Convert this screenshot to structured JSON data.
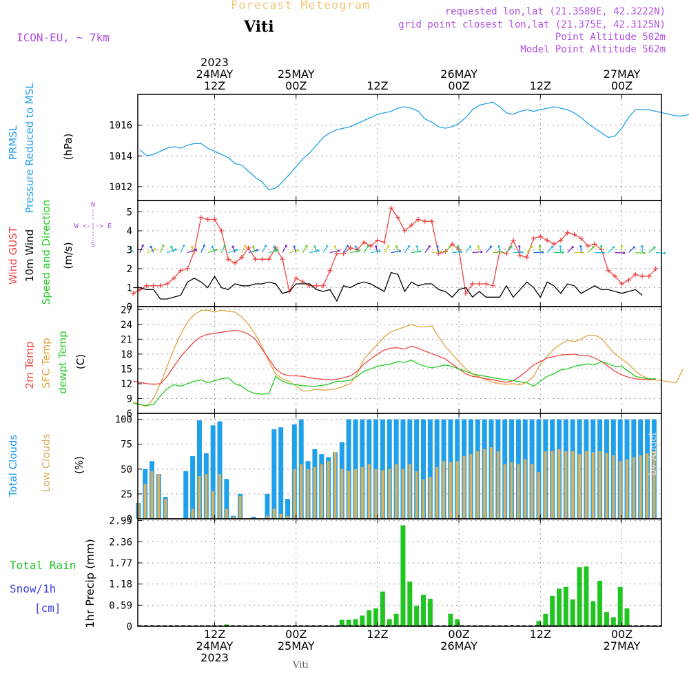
{
  "header": {
    "app_title": "Forecast Meteogram",
    "location": "Viti",
    "model": "ICON-EU, ~ 7km",
    "requested": "requested lon,lat (21.3589E, 42.3222N)",
    "grid_point": "grid point closest lon,lat (21.375E, 42.3125N)",
    "point_altitude": "Point Altitude 502m",
    "model_altitude": "Model Point Altitude 562m",
    "footer_location": "Viti",
    "watermark": "by Angel"
  },
  "time_axis": {
    "top_labels": [
      {
        "h": 12,
        "lines": [
          "2023",
          "24MAY",
          "12Z"
        ]
      },
      {
        "h": 24,
        "lines": [
          "25MAY",
          "00Z"
        ]
      },
      {
        "h": 36,
        "lines": [
          "12Z"
        ]
      },
      {
        "h": 48,
        "lines": [
          "26MAY",
          "00Z"
        ]
      },
      {
        "h": 60,
        "lines": [
          "12Z"
        ]
      },
      {
        "h": 72,
        "lines": [
          "27MAY",
          "00Z"
        ]
      }
    ],
    "bottom_labels": [
      {
        "h": 12,
        "lines": [
          "12Z",
          "24MAY",
          "2023"
        ]
      },
      {
        "h": 24,
        "lines": [
          "00Z",
          "25MAY"
        ]
      },
      {
        "h": 36,
        "lines": [
          "12Z"
        ]
      },
      {
        "h": 48,
        "lines": [
          "00Z",
          "26MAY"
        ]
      },
      {
        "h": 60,
        "lines": [
          "12Z"
        ]
      },
      {
        "h": 72,
        "lines": [
          "00Z",
          "27MAY"
        ]
      }
    ]
  },
  "colors": {
    "pressure": "#1fa0ea",
    "gust": "#ee4444",
    "wind": "#000000",
    "temp2m": "#ee4444",
    "sfc": "#e0a43c",
    "dewpt": "#22cc22",
    "total_cloud": "#1fa0ea",
    "low_cloud": "#d8b060",
    "precip": "#22c422",
    "title": "#f0c878",
    "meta": "#b050e0",
    "snow": "#4040e0"
  },
  "chart_data": [
    {
      "type": "line",
      "id": "pressure",
      "title_lines": [
        "PRMSL",
        "Pressure Reduced to MSL"
      ],
      "ylabel": "(hPa)",
      "ylim": [
        1011.1,
        1018.0
      ],
      "yticks": [
        1012,
        1014,
        1016
      ],
      "x_start_h": 1,
      "x_step_h": 1,
      "series": [
        {
          "name": "PRMSL",
          "values": [
            1014.4,
            1014.0,
            1014.1,
            1014.3,
            1014.5,
            1014.6,
            1014.5,
            1014.7,
            1014.8,
            1014.8,
            1014.5,
            1014.3,
            1014.1,
            1013.9,
            1013.5,
            1013.4,
            1013.0,
            1012.6,
            1012.3,
            1011.8,
            1011.9,
            1012.3,
            1012.8,
            1013.3,
            1013.8,
            1014.2,
            1014.7,
            1015.2,
            1015.5,
            1015.7,
            1015.8,
            1015.9,
            1016.1,
            1016.3,
            1016.5,
            1016.7,
            1016.8,
            1016.9,
            1017.1,
            1017.2,
            1017.1,
            1016.9,
            1016.4,
            1016.2,
            1015.9,
            1015.8,
            1015.9,
            1016.1,
            1016.5,
            1017.0,
            1017.3,
            1017.4,
            1017.5,
            1017.2,
            1016.8,
            1016.7,
            1016.9,
            1017.0,
            1016.9,
            1017.0,
            1017.1,
            1017.2,
            1017.1,
            1017.0,
            1016.8,
            1016.5,
            1016.1,
            1015.8,
            1015.5,
            1015.2,
            1015.3,
            1015.8,
            1016.5,
            1017.0,
            1017.0,
            1017.0,
            1016.9,
            1016.8,
            1016.7,
            1016.6,
            1016.6,
            1016.7,
            1016.9,
            1016.9
          ]
        }
      ]
    },
    {
      "type": "line",
      "id": "wind",
      "title_lines": [
        "Wind GUST",
        "10m Wind",
        "Speed and Direction"
      ],
      "ylabel": "(m/s)",
      "compass": [
        "N",
        "W <-|-> E",
        "S"
      ],
      "ylim": [
        0,
        5.6
      ],
      "yticks": [
        0,
        1,
        2,
        3,
        4,
        5
      ],
      "x_start_h": 0,
      "x_step_h": 1,
      "series": [
        {
          "name": "Wind GUST",
          "values": [
            0.7,
            0.9,
            1.1,
            1.1,
            1.1,
            1.2,
            1.5,
            1.9,
            2.0,
            2.9,
            4.7,
            4.6,
            4.6,
            4.0,
            2.5,
            2.3,
            2.6,
            3.1,
            2.5,
            2.5,
            2.5,
            3.1,
            2.5,
            0.8,
            1.5,
            1.3,
            1.1,
            1.1,
            1.1,
            1.9,
            2.8,
            2.8,
            3.1,
            3.0,
            3.4,
            3.2,
            3.5,
            3.4,
            5.2,
            4.7,
            4.0,
            4.3,
            4.6,
            4.5,
            4.5,
            2.8,
            2.9,
            3.3,
            3.0,
            0.7,
            1.2,
            1.2,
            1.2,
            1.1,
            2.9,
            2.8,
            3.5,
            2.7,
            2.6,
            3.6,
            3.7,
            3.5,
            3.3,
            3.5,
            3.9,
            3.8,
            3.6,
            3.2,
            3.3,
            3.0,
            1.9,
            1.6,
            1.2,
            1.4,
            1.7,
            1.6,
            1.6,
            2.0
          ]
        },
        {
          "name": "10m Wind",
          "values": [
            1.0,
            1.0,
            0.9,
            0.9,
            0.4,
            0.4,
            0.5,
            0.6,
            1.3,
            1.5,
            1.3,
            1.0,
            1.6,
            1.0,
            0.9,
            1.2,
            1.1,
            1.1,
            1.2,
            1.2,
            1.3,
            1.2,
            0.7,
            0.8,
            1.2,
            1.2,
            1.2,
            0.9,
            0.8,
            0.9,
            0.3,
            1.1,
            1.0,
            1.2,
            1.3,
            1.2,
            1.0,
            0.8,
            1.8,
            1.7,
            0.8,
            1.3,
            1.1,
            1.2,
            1.2,
            0.9,
            0.8,
            0.5,
            0.9,
            1.0,
            0.5,
            0.8,
            0.5,
            0.5,
            0.5,
            1.1,
            0.5,
            0.9,
            1.3,
            1.0,
            0.5,
            1.3,
            1.1,
            0.7,
            1.2,
            1.1,
            0.7,
            0.9,
            1.1,
            0.9,
            0.9,
            0.8,
            0.7,
            0.8,
            0.9,
            0.6
          ]
        }
      ]
    },
    {
      "type": "line",
      "id": "temperature",
      "title_lines": [
        "2m Temp",
        "SFC Temp",
        "dewpt Temp"
      ],
      "ylabel": "(C)",
      "ylim": [
        6,
        27.6
      ],
      "yticks": [
        6,
        9,
        12,
        15,
        18,
        21,
        24,
        27
      ],
      "x_start_h": 0,
      "x_step_h": 1,
      "series": [
        {
          "name": "2m Temp",
          "values": [
            12.5,
            12.3,
            12.0,
            11.9,
            12.0,
            13.5,
            15.5,
            17.5,
            19.0,
            20.5,
            21.5,
            22.0,
            22.2,
            22.4,
            22.6,
            22.8,
            22.6,
            22.0,
            21.0,
            19.0,
            17.0,
            15.0,
            14.0,
            13.6,
            13.6,
            13.5,
            13.2,
            13.0,
            12.9,
            12.8,
            12.9,
            13.2,
            13.6,
            14.5,
            16.0,
            17.0,
            18.0,
            18.8,
            19.2,
            19.3,
            19.0,
            19.6,
            19.2,
            18.6,
            18.1,
            17.6,
            17.0,
            16.0,
            15.0,
            14.0,
            13.5,
            13.3,
            13.0,
            12.8,
            12.5,
            12.3,
            12.6,
            13.5,
            14.6,
            15.8,
            16.5,
            17.2,
            17.5,
            17.8,
            17.9,
            18.0,
            17.7,
            17.7,
            17.2,
            16.5,
            15.5,
            14.5,
            13.8,
            13.3,
            13.0,
            12.9,
            12.8,
            12.9
          ]
        },
        {
          "name": "SFC Temp",
          "values": [
            8.3,
            7.8,
            7.4,
            9.0,
            12.0,
            15.5,
            19.0,
            22.0,
            24.5,
            26.0,
            26.8,
            26.9,
            26.5,
            26.9,
            26.6,
            26.5,
            25.5,
            24.0,
            22.0,
            19.5,
            16.5,
            14.0,
            13.0,
            12.5,
            11.5,
            10.5,
            10.6,
            10.9,
            10.7,
            10.8,
            11.0,
            11.5,
            12.0,
            14.0,
            17.0,
            18.5,
            20.0,
            21.5,
            22.5,
            23.0,
            23.5,
            24.0,
            23.5,
            23.5,
            23.7,
            21.5,
            19.5,
            18.0,
            16.5,
            15.0,
            14.0,
            13.4,
            12.8,
            12.3,
            12.0,
            11.9,
            12.0,
            11.8,
            12.3,
            13.5,
            16.0,
            17.5,
            19.0,
            20.0,
            20.8,
            20.5,
            21.0,
            21.8,
            21.8,
            21.2,
            19.5,
            18.0,
            17.0,
            16.0,
            14.5,
            13.6,
            13.0,
            12.8,
            12.6,
            12.4,
            12.2,
            15.0
          ]
        },
        {
          "name": "dewpt Temp",
          "values": [
            8.0,
            7.8,
            7.6,
            7.8,
            9.5,
            11.0,
            11.8,
            11.5,
            12.0,
            12.5,
            12.8,
            12.2,
            12.6,
            13.0,
            13.2,
            12.0,
            11.5,
            10.5,
            10.0,
            9.9,
            10.0,
            13.5,
            12.5,
            12.0,
            11.8,
            11.6,
            11.5,
            11.5,
            11.7,
            12.0,
            12.5,
            12.5,
            12.7,
            13.5,
            14.5,
            15.0,
            15.5,
            15.8,
            16.0,
            16.5,
            16.3,
            16.8,
            16.0,
            15.5,
            15.2,
            15.5,
            15.8,
            15.5,
            15.0,
            14.5,
            14.0,
            13.7,
            13.5,
            13.2,
            13.0,
            12.8,
            12.6,
            12.4,
            12.2,
            11.5,
            12.5,
            13.5,
            14.0,
            14.8,
            15.0,
            15.5,
            15.8,
            16.0,
            15.8,
            16.5,
            16.0,
            15.5,
            15.5,
            14.5,
            13.5,
            13.2,
            13.0,
            13.0
          ]
        }
      ]
    },
    {
      "type": "bar",
      "id": "clouds",
      "title_lines": [
        "Total Clouds",
        "Low Clouds"
      ],
      "ylabel": "(%)",
      "ylim": [
        0,
        106
      ],
      "yticks": [
        0,
        25,
        50,
        75,
        100
      ],
      "x_start_h": 0,
      "x_step_h": 1,
      "series": [
        {
          "name": "Total Clouds",
          "values": [
            16,
            50,
            58,
            45,
            22,
            0,
            0,
            48,
            63,
            99,
            66,
            94,
            98,
            40,
            3,
            25,
            0,
            2,
            0,
            25,
            90,
            92,
            20,
            95,
            100,
            58,
            70,
            65,
            62,
            67,
            77,
            100,
            100,
            100,
            100,
            100,
            100,
            100,
            100,
            100,
            100,
            100,
            100,
            100,
            100,
            100,
            100,
            100,
            100,
            100,
            100,
            100,
            100,
            100,
            100,
            100,
            100,
            100,
            100,
            100,
            100,
            100,
            100,
            100,
            100,
            100,
            100,
            100,
            100,
            100,
            100,
            100,
            100,
            100,
            100,
            100,
            100,
            100,
            85,
            97,
            85,
            90,
            100,
            63,
            68,
            91
          ]
        },
        {
          "name": "Low Clouds",
          "values": [
            16,
            35,
            48,
            45,
            20,
            0,
            0,
            0,
            10,
            43,
            45,
            28,
            45,
            10,
            2,
            23,
            0,
            0,
            0,
            3,
            10,
            5,
            3,
            50,
            55,
            50,
            52,
            55,
            58,
            67,
            50,
            48,
            50,
            52,
            55,
            50,
            49,
            50,
            55,
            50,
            55,
            48,
            40,
            42,
            52,
            58,
            57,
            58,
            63,
            65,
            68,
            70,
            72,
            68,
            55,
            57,
            55,
            60,
            55,
            47,
            68,
            68,
            70,
            68,
            68,
            65,
            68,
            67,
            68,
            66,
            64,
            58,
            60,
            62,
            64,
            66,
            68,
            70,
            75,
            78,
            77,
            62,
            68,
            80,
            82,
            92
          ]
        }
      ]
    },
    {
      "type": "bar",
      "id": "precip",
      "title_lines": [
        "Total Rain",
        "Snow/1h",
        "[cm]"
      ],
      "ylabel": "1hr Precip (mm)",
      "ylim": [
        0,
        3.0
      ],
      "yticks": [
        0,
        0.59,
        1.18,
        1.77,
        2.36,
        2.95
      ],
      "x_start_h": 0,
      "x_step_h": 1,
      "series": [
        {
          "name": "Total Rain",
          "values": [
            0,
            0,
            0,
            0,
            0,
            0,
            0,
            0,
            0,
            0,
            0,
            0.02,
            0,
            0.05,
            0,
            0,
            0,
            0,
            0,
            0,
            0,
            0,
            0,
            0,
            0,
            0,
            0,
            0,
            0,
            0,
            0.18,
            0.18,
            0.2,
            0.3,
            0.45,
            0.5,
            0.97,
            0.2,
            0.35,
            2.82,
            1.25,
            0.57,
            0.88,
            0.77,
            0,
            0,
            0.35,
            0.2,
            0,
            0,
            0.02,
            0.02,
            0,
            0,
            0,
            0,
            0,
            0,
            0,
            0.15,
            0.35,
            0.85,
            1.05,
            1.1,
            0.75,
            1.65,
            1.67,
            0.7,
            1.27,
            0.4,
            0.25,
            1.1,
            0.5,
            0,
            0,
            0,
            0,
            0,
            0.05,
            0.02,
            0
          ]
        }
      ]
    }
  ]
}
